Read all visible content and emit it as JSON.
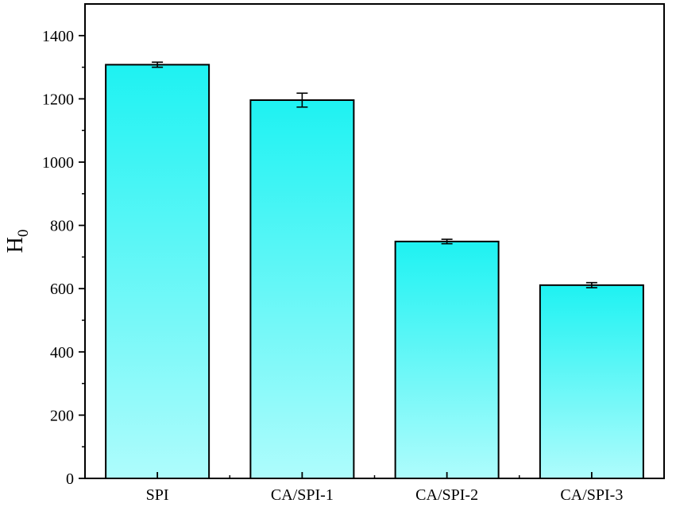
{
  "chart_data": {
    "type": "bar",
    "title": "",
    "xlabel": "",
    "ylabel": {
      "main": "H",
      "sub": "0"
    },
    "categories": [
      "SPI",
      "CA/SPI-1",
      "CA/SPI-2",
      "CA/SPI-3"
    ],
    "values": [
      1308,
      1196,
      749,
      611
    ],
    "errors": [
      8,
      22,
      7,
      8
    ],
    "ylim": [
      0,
      1500
    ],
    "yticks": [
      0,
      200,
      400,
      600,
      800,
      1000,
      1200,
      1400
    ],
    "grid": false,
    "legend": "none",
    "colors": {
      "bar_top": "#1ef2f2",
      "bar_bottom": "#aefcfc",
      "bar_stroke": "#000000",
      "axis": "#000000"
    }
  }
}
